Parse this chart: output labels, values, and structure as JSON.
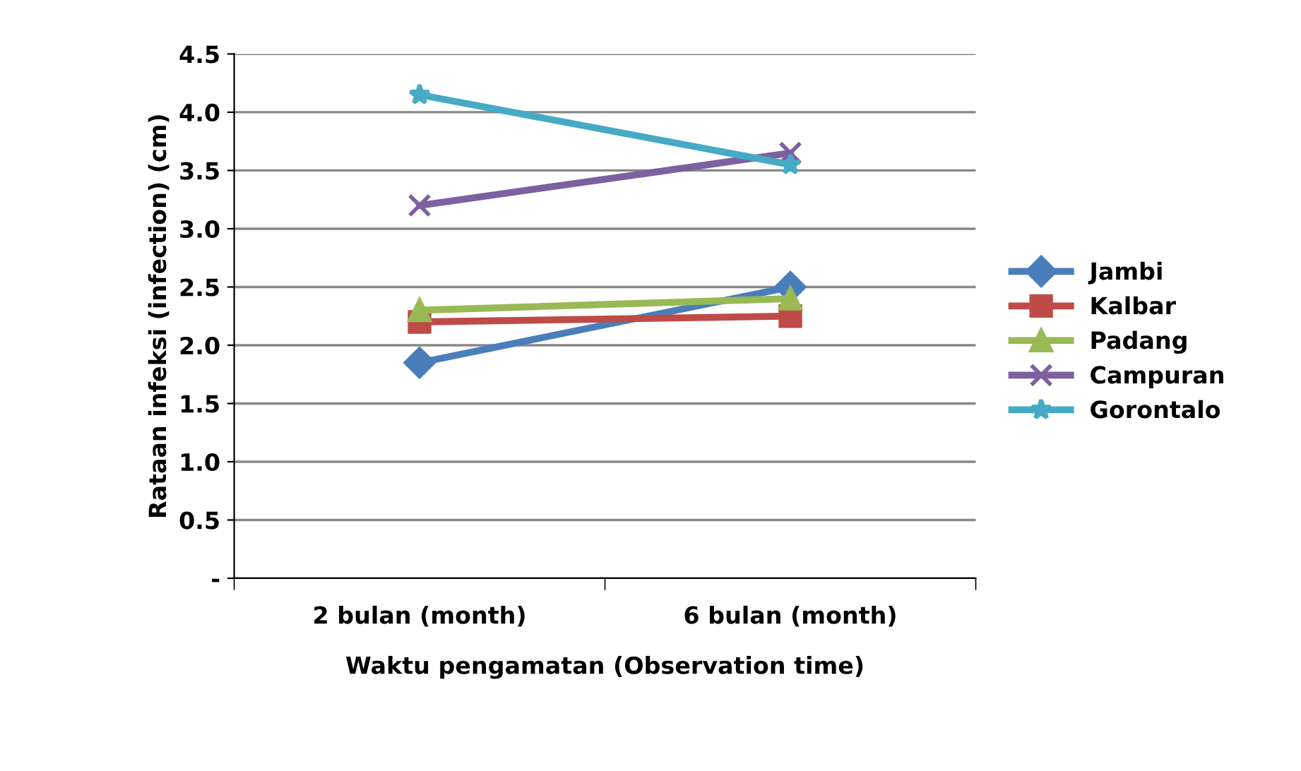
{
  "chart_data": {
    "type": "line",
    "xlabel": "Waktu pengamatan (Observation time)",
    "ylabel": "Rataan infeksi (infection) (cm)",
    "categories": [
      "2 bulan (month)",
      "6 bulan (month)"
    ],
    "series": [
      {
        "name": "Jambi",
        "color": "#4a7ebb",
        "marker": "diamond",
        "values": [
          1.85,
          2.5
        ]
      },
      {
        "name": "Kalbar",
        "color": "#be4b48",
        "marker": "square",
        "values": [
          2.2,
          2.25
        ]
      },
      {
        "name": "Padang",
        "color": "#98b954",
        "marker": "triangle",
        "values": [
          2.3,
          2.4
        ]
      },
      {
        "name": "Campuran",
        "color": "#7d60a0",
        "marker": "cross",
        "values": [
          3.2,
          3.65
        ]
      },
      {
        "name": "Gorontalo",
        "color": "#46aac5",
        "marker": "star",
        "values": [
          4.15,
          3.55
        ]
      }
    ],
    "ylim": [
      0,
      4.5
    ],
    "yticks": [
      {
        "value": 0,
        "label": "-"
      },
      {
        "value": 0.5,
        "label": "0.5"
      },
      {
        "value": 1,
        "label": "1.0"
      },
      {
        "value": 1.5,
        "label": "1.5"
      },
      {
        "value": 2,
        "label": "2.0"
      },
      {
        "value": 2.5,
        "label": "2.5"
      },
      {
        "value": 3,
        "label": "3.0"
      },
      {
        "value": 3.5,
        "label": "3.5"
      },
      {
        "value": 4,
        "label": "4.0"
      },
      {
        "value": 4.5,
        "label": "4.5"
      }
    ],
    "grid": "y",
    "legend": "right",
    "line_style": "solid"
  }
}
